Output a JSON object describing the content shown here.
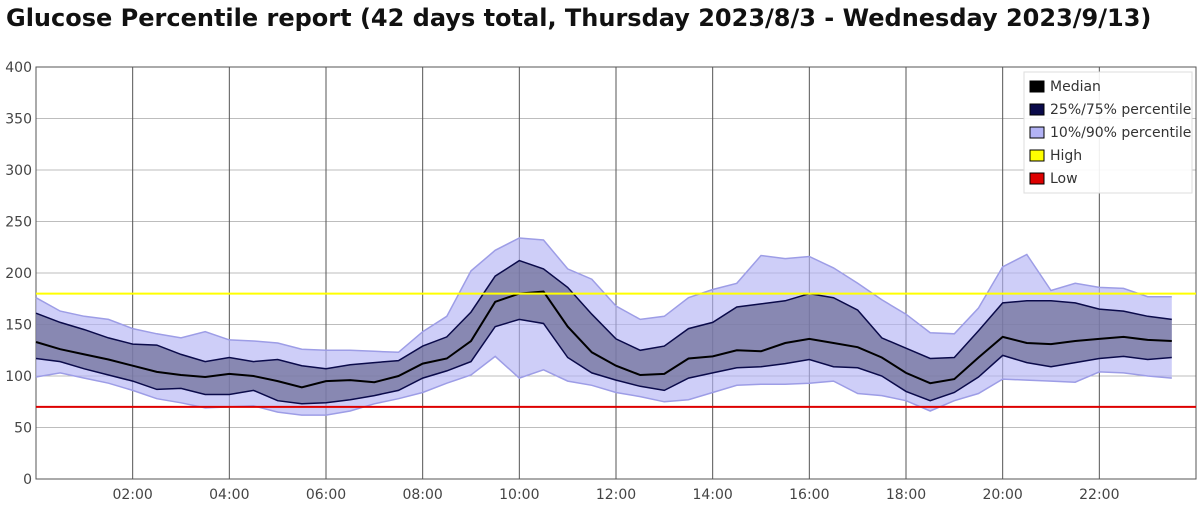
{
  "chart_data": {
    "type": "area",
    "title": "Glucose Percentile report (42 days total, Thursday 2023/8/3 - Wednesday 2023/9/13)",
    "xlabel": "",
    "ylabel": "",
    "xlim": [
      0,
      24
    ],
    "ylim": [
      0,
      400
    ],
    "grid": true,
    "legend_position": "top-right",
    "x_ticks": [
      {
        "value": 2,
        "label": "02:00"
      },
      {
        "value": 4,
        "label": "04:00"
      },
      {
        "value": 6,
        "label": "06:00"
      },
      {
        "value": 8,
        "label": "08:00"
      },
      {
        "value": 10,
        "label": "10:00"
      },
      {
        "value": 12,
        "label": "12:00"
      },
      {
        "value": 14,
        "label": "14:00"
      },
      {
        "value": 16,
        "label": "16:00"
      },
      {
        "value": 18,
        "label": "18:00"
      },
      {
        "value": 20,
        "label": "20:00"
      },
      {
        "value": 22,
        "label": "22:00"
      }
    ],
    "y_ticks": [
      {
        "value": 0,
        "label": "0"
      },
      {
        "value": 50,
        "label": "50"
      },
      {
        "value": 100,
        "label": "100"
      },
      {
        "value": 150,
        "label": "150"
      },
      {
        "value": 200,
        "label": "200"
      },
      {
        "value": 250,
        "label": "250"
      },
      {
        "value": 300,
        "label": "300"
      },
      {
        "value": 350,
        "label": "350"
      },
      {
        "value": 400,
        "label": "400"
      }
    ],
    "x": [
      0,
      0.5,
      1,
      1.5,
      2,
      2.5,
      3,
      3.5,
      4,
      4.5,
      5,
      5.5,
      6,
      6.5,
      7,
      7.5,
      8,
      8.5,
      9,
      9.5,
      10,
      10.5,
      11,
      11.5,
      12,
      12.5,
      13,
      13.5,
      14,
      14.5,
      15,
      15.5,
      16,
      16.5,
      17,
      17.5,
      18,
      18.5,
      19,
      19.5,
      20,
      20.5,
      21,
      21.5,
      22,
      22.5,
      23,
      23.5
    ],
    "series": [
      {
        "name": "Median",
        "color": "#000000",
        "values": [
          133,
          126,
          121,
          116,
          110,
          104,
          101,
          99,
          102,
          100,
          95,
          89,
          95,
          96,
          94,
          100,
          112,
          117,
          134,
          172,
          180,
          182,
          148,
          123,
          110,
          101,
          102,
          117,
          119,
          125,
          124,
          132,
          136,
          132,
          128,
          118,
          103,
          93,
          97,
          118,
          138,
          132,
          131,
          134,
          136,
          138,
          135,
          134
        ]
      },
      {
        "name": "25%/75% percentile",
        "color": "#0a0a4a",
        "lower": [
          117,
          114,
          107,
          101,
          95,
          87,
          88,
          82,
          82,
          86,
          76,
          73,
          74,
          77,
          81,
          86,
          98,
          105,
          114,
          148,
          155,
          151,
          118,
          103,
          96,
          90,
          86,
          98,
          103,
          108,
          109,
          112,
          116,
          109,
          108,
          100,
          85,
          76,
          84,
          99,
          120,
          113,
          109,
          113,
          117,
          119,
          116,
          118
        ],
        "upper": [
          161,
          152,
          145,
          137,
          131,
          130,
          121,
          114,
          118,
          114,
          116,
          110,
          107,
          111,
          113,
          115,
          129,
          138,
          162,
          197,
          212,
          204,
          186,
          160,
          136,
          125,
          129,
          146,
          152,
          167,
          170,
          173,
          180,
          176,
          164,
          137,
          127,
          117,
          118,
          144,
          171,
          173,
          173,
          171,
          165,
          163,
          158,
          155
        ]
      },
      {
        "name": "10%/90% percentile",
        "color": "#b3b3f5",
        "lower": [
          99,
          103,
          98,
          93,
          86,
          78,
          74,
          69,
          70,
          71,
          65,
          62,
          62,
          66,
          73,
          78,
          84,
          93,
          101,
          119,
          98,
          106,
          95,
          91,
          84,
          80,
          75,
          77,
          84,
          91,
          92,
          92,
          93,
          95,
          83,
          81,
          76,
          66,
          76,
          83,
          97,
          96,
          95,
          94,
          104,
          103,
          100,
          98
        ],
        "upper": [
          176,
          163,
          158,
          155,
          146,
          141,
          137,
          143,
          135,
          134,
          132,
          126,
          125,
          125,
          124,
          123,
          143,
          158,
          202,
          222,
          234,
          232,
          204,
          194,
          168,
          155,
          158,
          176,
          184,
          190,
          217,
          214,
          216,
          205,
          190,
          174,
          160,
          142,
          141,
          166,
          206,
          218,
          183,
          190,
          186,
          185,
          177,
          177
        ]
      },
      {
        "name": "High",
        "color": "#ffff00",
        "value": 180
      },
      {
        "name": "Low",
        "color": "#dd0000",
        "value": 70
      }
    ]
  }
}
